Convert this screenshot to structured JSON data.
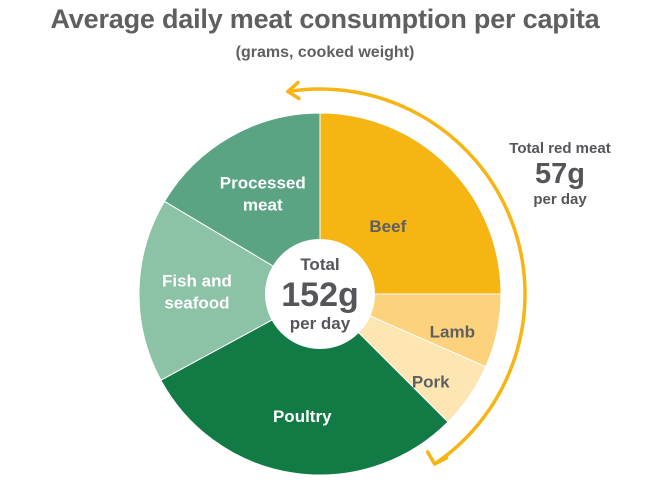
{
  "title": "Average daily meat consumption per capita",
  "subtitle": "(grams, cooked weight)",
  "center": {
    "label": "Total",
    "value": "152g",
    "unit": "per day"
  },
  "red_meat_note": {
    "label": "Total red meat",
    "value": "57g",
    "unit": "per day"
  },
  "colors": {
    "beef": "#f7b514",
    "lamb": "#fcd27c",
    "pork": "#fde6b1",
    "poultry": "#117a45",
    "fish_and_seafood": "#8cc2a6",
    "processed_meat": "#5aa484",
    "arrow": "#f7b514",
    "title": "#5e5f61"
  },
  "chart_data": {
    "type": "pie",
    "title": "Average daily meat consumption per capita",
    "subtitle": "(grams, cooked weight)",
    "unit": "grams per day",
    "total": 152,
    "slices": [
      {
        "label": "Beef",
        "value": 38,
        "color": "#f7b514",
        "text_color": "#5e5f61"
      },
      {
        "label": "Lamb",
        "value": 10,
        "color": "#fcd27c",
        "text_color": "#5e5f61"
      },
      {
        "label": "Pork",
        "value": 9,
        "color": "#fde6b1",
        "text_color": "#5e5f61"
      },
      {
        "label": "Poultry",
        "value": 45,
        "color": "#117a45",
        "text_color": "#ffffff"
      },
      {
        "label": "Fish and seafood",
        "value": 25,
        "color": "#8cc2a6",
        "text_color": "#ffffff"
      },
      {
        "label": "Processed meat",
        "value": 25,
        "color": "#5aa484",
        "text_color": "#ffffff"
      }
    ]
  }
}
